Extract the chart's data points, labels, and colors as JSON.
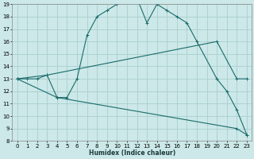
{
  "xlabel": "Humidex (Indice chaleur)",
  "xlim": [
    -0.5,
    23.5
  ],
  "ylim": [
    8,
    19
  ],
  "yticks": [
    8,
    9,
    10,
    11,
    12,
    13,
    14,
    15,
    16,
    17,
    18,
    19
  ],
  "xticks": [
    0,
    1,
    2,
    3,
    4,
    5,
    6,
    7,
    8,
    9,
    10,
    11,
    12,
    13,
    14,
    15,
    16,
    17,
    18,
    19,
    20,
    21,
    22,
    23
  ],
  "bg_color": "#cce8e8",
  "grid_color": "#aacece",
  "line_color": "#1a6b6b",
  "line1_x": [
    0,
    1,
    2,
    3,
    4,
    5,
    6,
    7,
    8,
    9,
    10,
    11,
    12,
    13,
    14,
    15,
    16,
    17,
    18,
    20,
    21,
    22,
    23
  ],
  "line1_y": [
    13,
    13,
    13,
    13.3,
    11.5,
    11.5,
    13.0,
    16.5,
    18.0,
    18.5,
    19.0,
    19.2,
    19.5,
    17.5,
    19.0,
    18.5,
    18.0,
    17.5,
    16.0,
    13.0,
    12.0,
    10.5,
    8.5
  ],
  "line2_x": [
    0,
    3,
    20,
    22,
    23
  ],
  "line2_y": [
    13,
    13.3,
    16.0,
    13.0,
    13.0
  ],
  "line3_x": [
    0,
    4,
    22,
    23
  ],
  "line3_y": [
    13,
    11.5,
    9.0,
    8.5
  ]
}
